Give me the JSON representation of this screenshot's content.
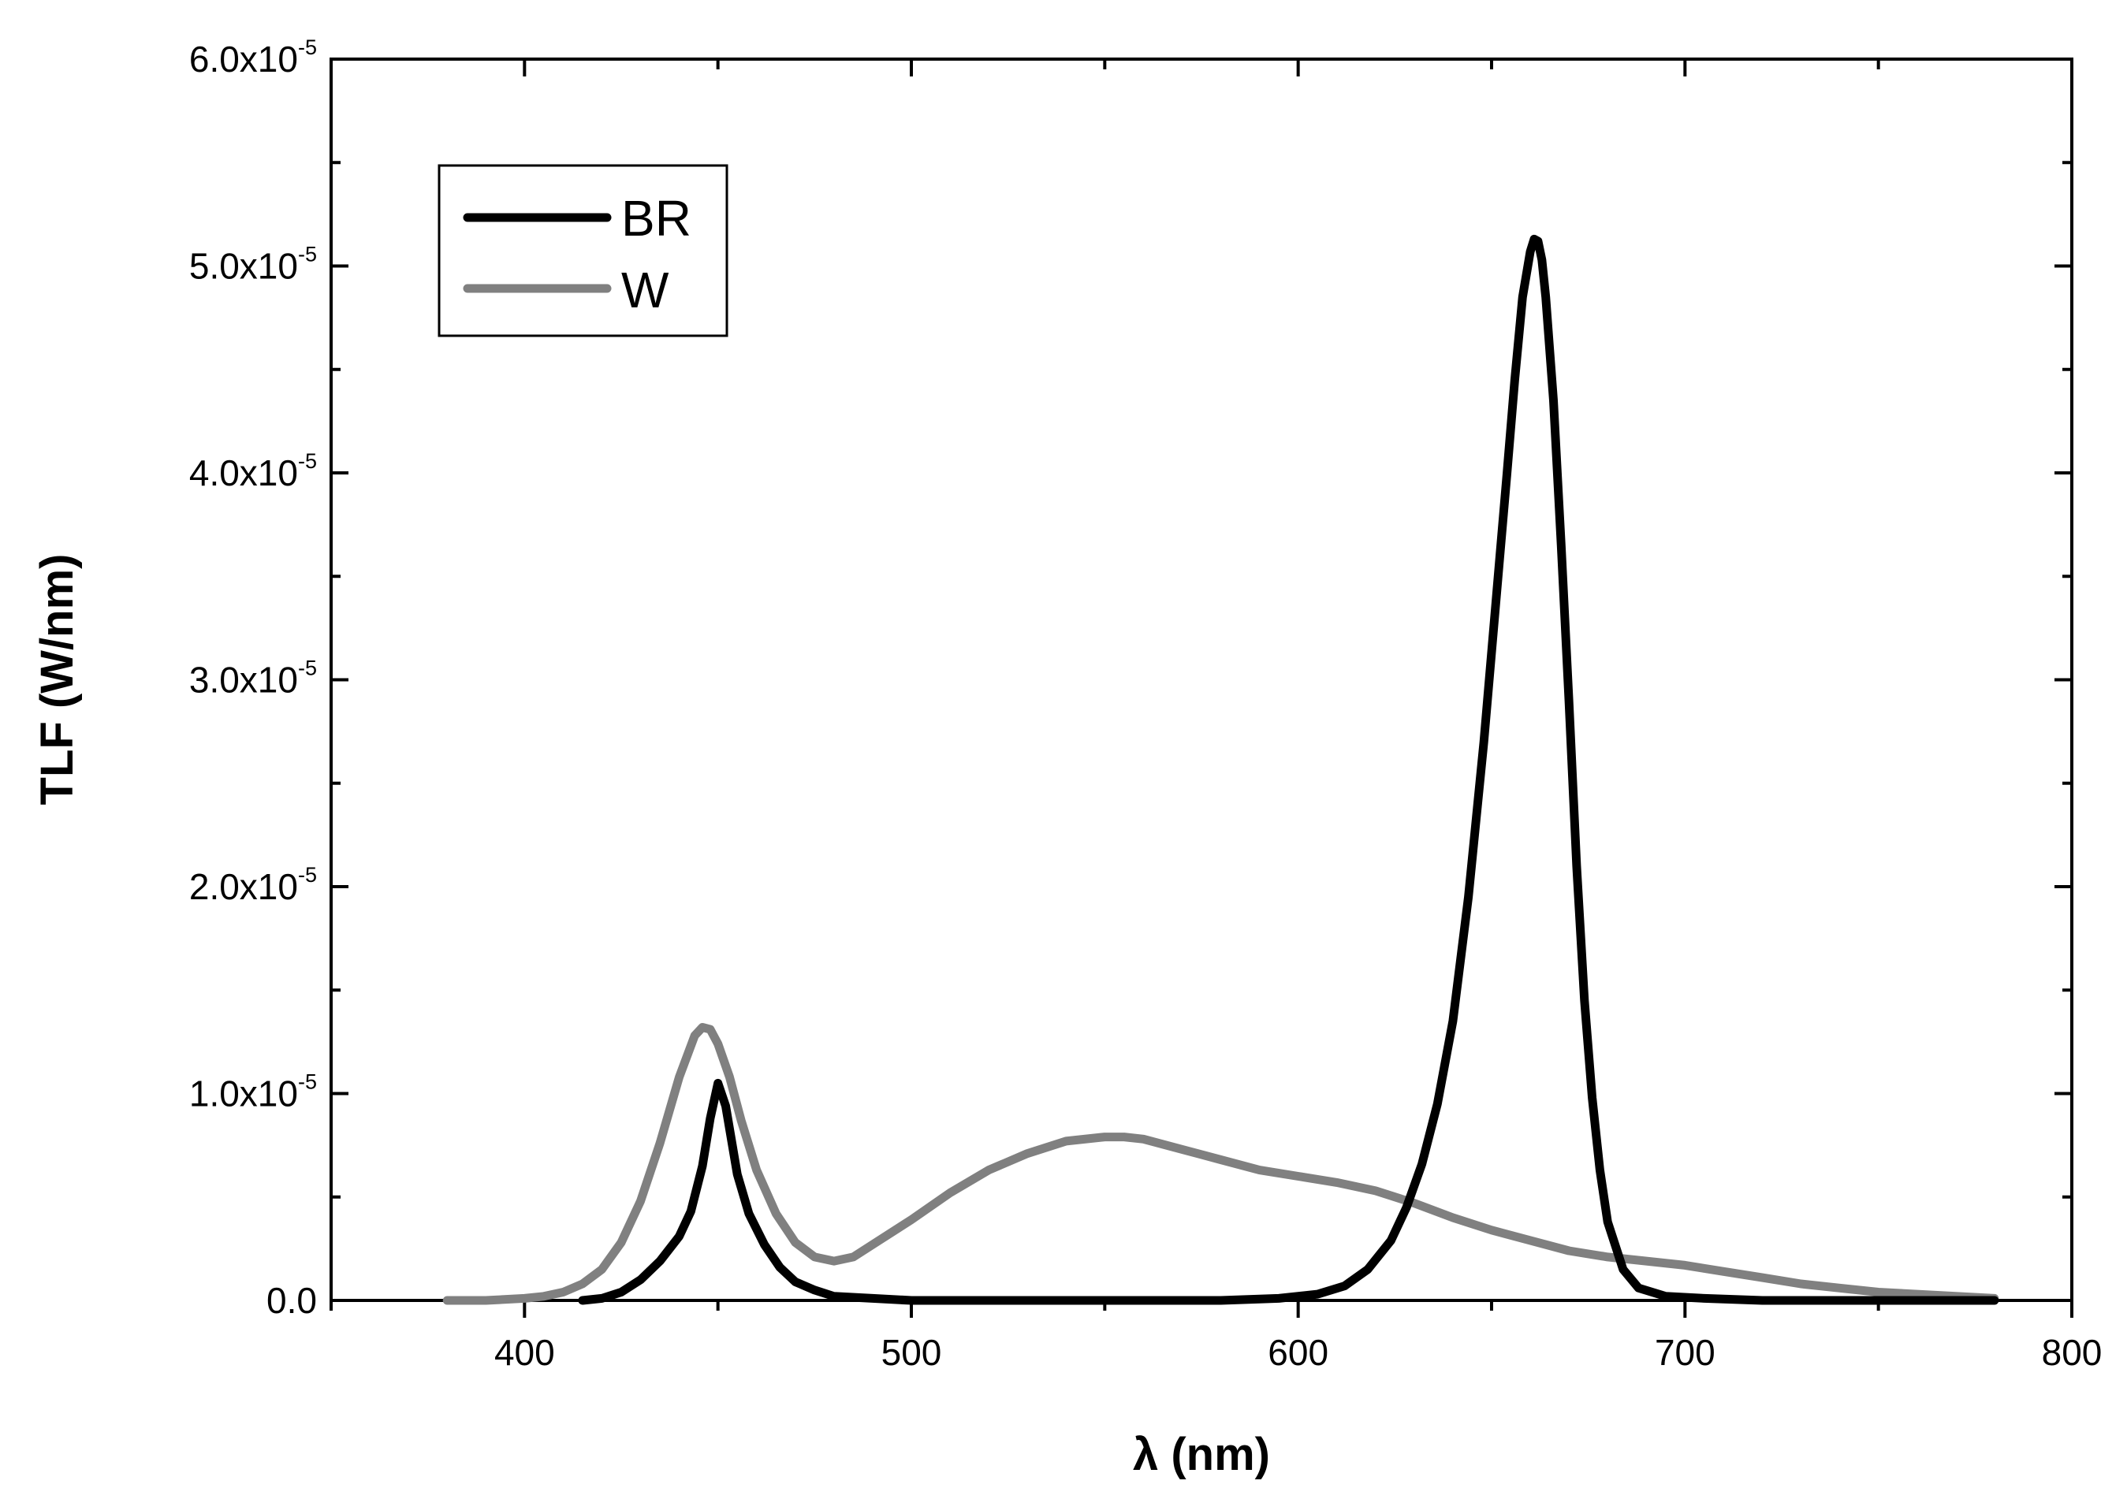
{
  "chart_data": {
    "type": "line",
    "title": "",
    "xlabel": "λ (nm)",
    "ylabel": "TLF (W/nm)",
    "xlim": [
      350,
      800
    ],
    "ylim": [
      0,
      6e-05
    ],
    "x_ticks": [
      400,
      500,
      600,
      700,
      800
    ],
    "x_tick_labels": [
      "400",
      "500",
      "600",
      "700",
      "800"
    ],
    "y_ticks": [
      0,
      1e-05,
      2e-05,
      3e-05,
      4e-05,
      5e-05,
      6e-05
    ],
    "y_tick_labels": [
      {
        "base": "0.0",
        "exp": ""
      },
      {
        "base": "1.0x10",
        "exp": "-5"
      },
      {
        "base": "2.0x10",
        "exp": "-5"
      },
      {
        "base": "3.0x10",
        "exp": "-5"
      },
      {
        "base": "4.0x10",
        "exp": "-5"
      },
      {
        "base": "5.0x10",
        "exp": "-5"
      },
      {
        "base": "6.0x10",
        "exp": "-5"
      }
    ],
    "grid": false,
    "legend_position": "top-left",
    "series": [
      {
        "name": "BR",
        "color": "#000000",
        "x": [
          415,
          420,
          425,
          430,
          435,
          440,
          443,
          446,
          448,
          450,
          452,
          455,
          458,
          462,
          466,
          470,
          475,
          480,
          490,
          500,
          520,
          550,
          580,
          595,
          605,
          612,
          618,
          624,
          628,
          632,
          636,
          640,
          644,
          648,
          651,
          654,
          656,
          658,
          660,
          661,
          662,
          663,
          664,
          666,
          668,
          670,
          672,
          674,
          676,
          678,
          680,
          684,
          688,
          695,
          705,
          720,
          740,
          760,
          780
        ],
        "y": [
          0,
          1e-07,
          4e-07,
          1e-06,
          1.9e-06,
          3.1e-06,
          4.3e-06,
          6.5e-06,
          8.8e-06,
          1.05e-05,
          9.4e-06,
          6.1e-06,
          4.2e-06,
          2.7e-06,
          1.6e-06,
          9e-07,
          5e-07,
          2e-07,
          1e-07,
          0,
          0,
          0,
          0,
          1e-07,
          3e-07,
          7e-07,
          1.5e-06,
          2.9e-06,
          4.5e-06,
          6.6e-06,
          9.5e-06,
          1.35e-05,
          1.95e-05,
          2.7e-05,
          3.35e-05,
          4e-05,
          4.45e-05,
          4.85e-05,
          5.07e-05,
          5.13e-05,
          5.12e-05,
          5.03e-05,
          4.85e-05,
          4.35e-05,
          3.65e-05,
          2.9e-05,
          2.1e-05,
          1.45e-05,
          9.8e-06,
          6.3e-06,
          3.8e-06,
          1.5e-06,
          6e-07,
          2e-07,
          1e-07,
          0,
          0,
          0,
          0
        ]
      },
      {
        "name": "W",
        "color": "#808080",
        "x": [
          380,
          390,
          400,
          405,
          410,
          415,
          420,
          425,
          430,
          435,
          440,
          444,
          446,
          448,
          450,
          453,
          456,
          460,
          465,
          470,
          475,
          480,
          485,
          490,
          500,
          510,
          520,
          530,
          540,
          550,
          555,
          560,
          570,
          580,
          590,
          600,
          610,
          620,
          630,
          640,
          650,
          660,
          670,
          680,
          690,
          700,
          710,
          720,
          730,
          740,
          750,
          760,
          770,
          780
        ],
        "y": [
          0,
          0,
          1e-07,
          2e-07,
          4e-07,
          8e-07,
          1.5e-06,
          2.8e-06,
          4.8e-06,
          7.6e-06,
          1.08e-05,
          1.28e-05,
          1.32e-05,
          1.31e-05,
          1.24e-05,
          1.08e-05,
          8.7e-06,
          6.3e-06,
          4.2e-06,
          2.8e-06,
          2.1e-06,
          1.9e-06,
          2.1e-06,
          2.7e-06,
          3.9e-06,
          5.2e-06,
          6.3e-06,
          7.1e-06,
          7.7e-06,
          7.9e-06,
          7.9e-06,
          7.8e-06,
          7.3e-06,
          6.8e-06,
          6.3e-06,
          6e-06,
          5.7e-06,
          5.3e-06,
          4.7e-06,
          4e-06,
          3.4e-06,
          2.9e-06,
          2.4e-06,
          2.1e-06,
          1.9e-06,
          1.7e-06,
          1.4e-06,
          1.1e-06,
          8e-07,
          6e-07,
          4e-07,
          3e-07,
          2e-07,
          1e-07
        ]
      }
    ]
  }
}
